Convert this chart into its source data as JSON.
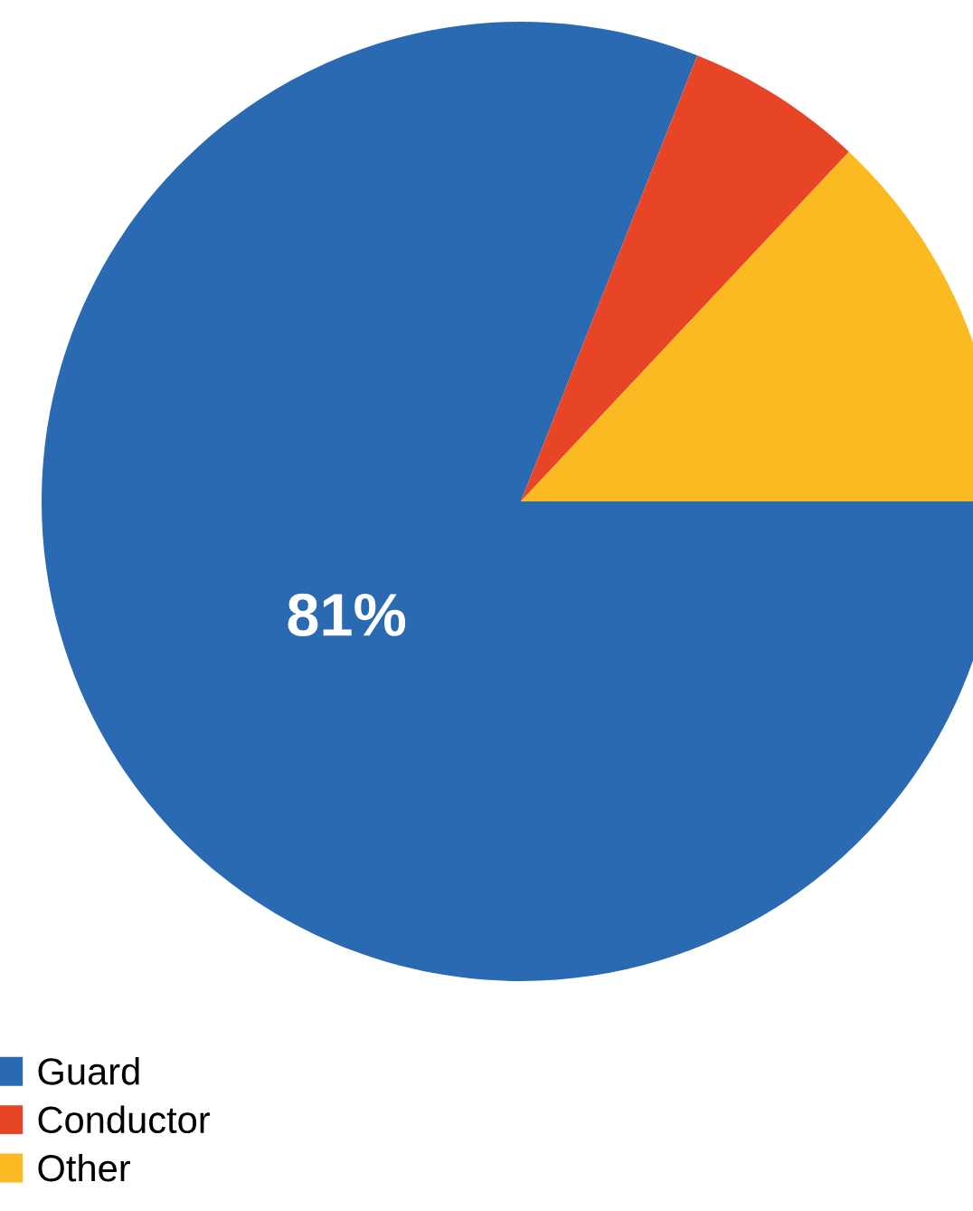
{
  "chart_data": {
    "type": "pie",
    "categories": [
      "Guard",
      "Conductor",
      "Other"
    ],
    "values": [
      81,
      6,
      13
    ],
    "colors": [
      "#2a6ab3",
      "#e84426",
      "#fbb922"
    ],
    "value_labels": [
      "81%",
      null,
      null
    ],
    "legend": "bottom left"
  }
}
